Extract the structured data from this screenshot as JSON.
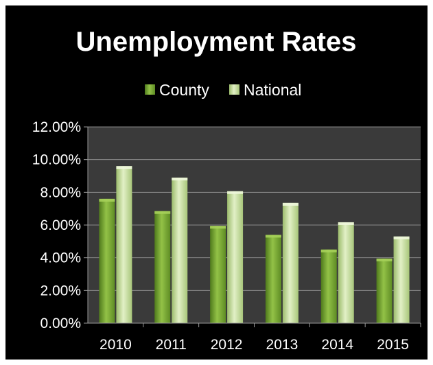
{
  "chart_data": {
    "type": "bar",
    "title": "Unemployment Rates",
    "categories": [
      "2010",
      "2011",
      "2012",
      "2013",
      "2014",
      "2015"
    ],
    "series": [
      {
        "name": "County",
        "values": [
          7.6,
          6.85,
          5.95,
          5.4,
          4.5,
          3.95
        ]
      },
      {
        "name": "National",
        "values": [
          9.6,
          8.9,
          8.07,
          7.35,
          6.17,
          5.3
        ]
      }
    ],
    "yticks": [
      "0.00%",
      "2.00%",
      "4.00%",
      "6.00%",
      "8.00%",
      "10.00%",
      "12.00%"
    ],
    "ylim": [
      0,
      12
    ],
    "xlabel": "",
    "ylabel": "",
    "grid": true,
    "legend": "top-center",
    "colors": {
      "County": "#7fae3c",
      "National": "#c6de9e",
      "plot_background": "#3a3a3a",
      "background": "#000000",
      "gridline": "#8a8a8a",
      "text": "#ffffff"
    }
  }
}
